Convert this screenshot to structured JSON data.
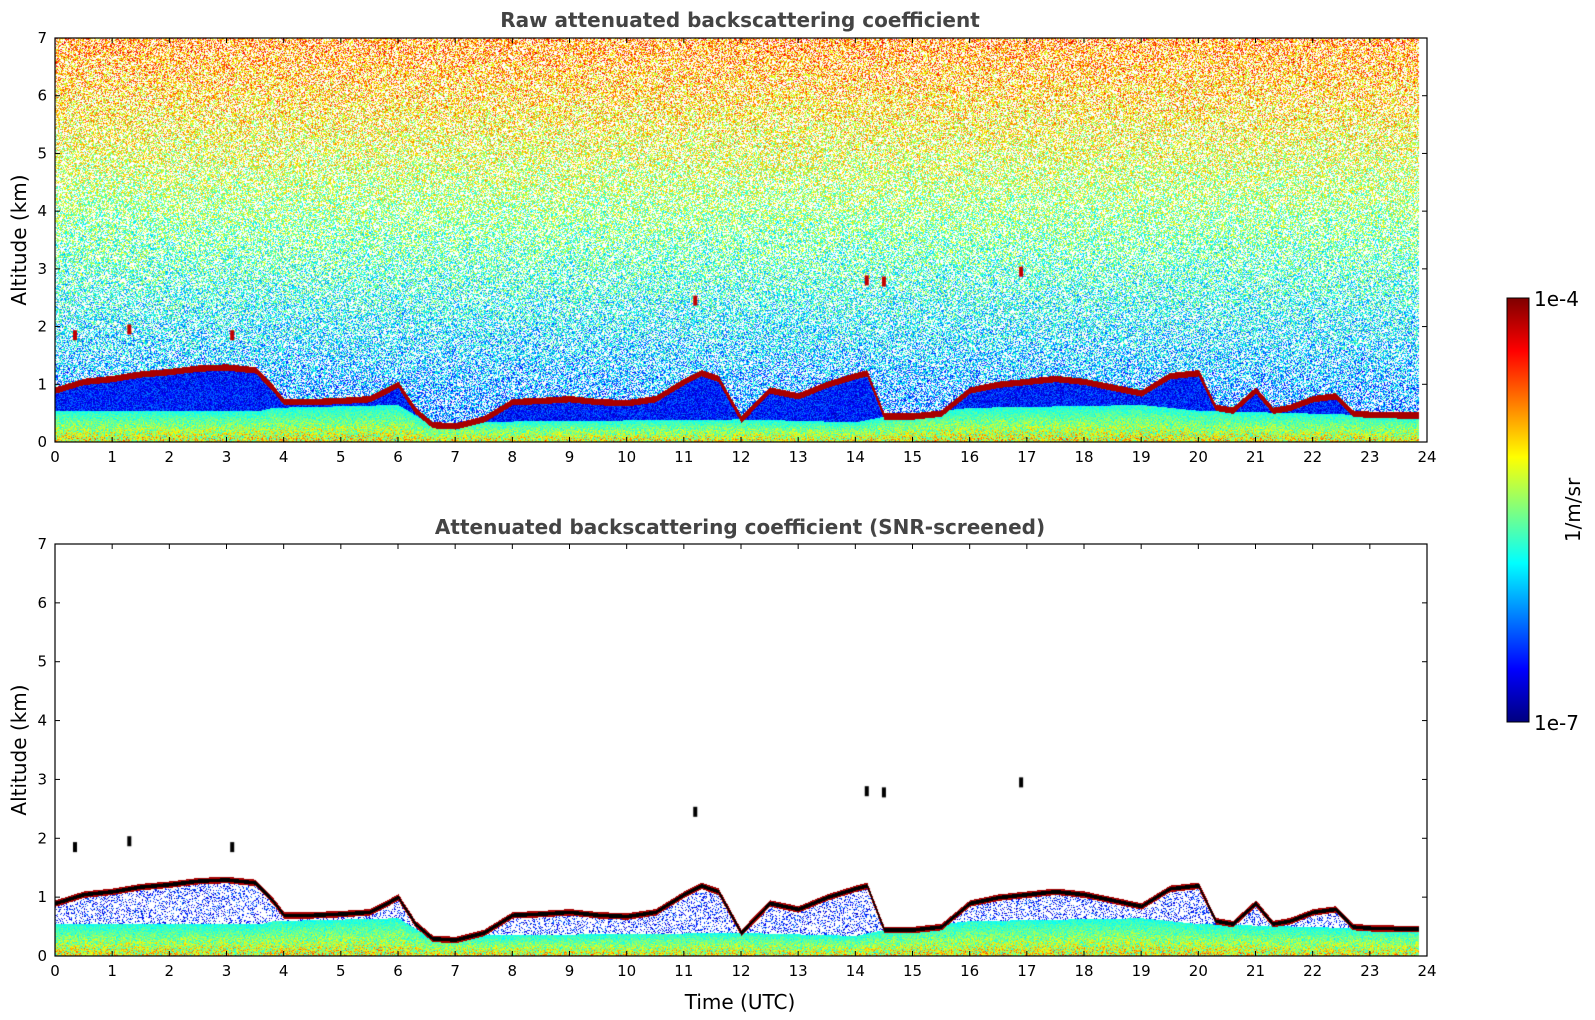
{
  "colors": {
    "jet": [
      "#00007f",
      "#0000ff",
      "#007fff",
      "#00ffff",
      "#7fff7f",
      "#ffff00",
      "#ff7f00",
      "#ff0000",
      "#7f0000"
    ],
    "background": "#ffffff",
    "contour": "#000000"
  },
  "colorbar": {
    "label": "1/m/sr",
    "tick_max": "1e-4",
    "tick_min": "1e-7",
    "range": [
      1e-07,
      0.0001
    ],
    "scale": "log"
  },
  "chart_data": [
    {
      "type": "heatmap",
      "title": "Raw attenuated backscattering coefficient",
      "xlabel": "",
      "ylabel": "Altitude (km)",
      "xlim": [
        0,
        24
      ],
      "ylim": [
        0,
        7
      ],
      "xticks": [
        "0",
        "1",
        "2",
        "3",
        "4",
        "5",
        "6",
        "7",
        "8",
        "9",
        "10",
        "11",
        "12",
        "13",
        "14",
        "15",
        "16",
        "17",
        "18",
        "19",
        "20",
        "21",
        "22",
        "23",
        "24"
      ],
      "yticks": [
        "0",
        "1",
        "2",
        "3",
        "4",
        "5",
        "6",
        "7"
      ],
      "data_end_time": 23.85,
      "cloud_base_height_km": {
        "time": [
          0,
          0.5,
          1,
          1.5,
          2,
          2.5,
          3,
          3.5,
          3.8,
          4,
          4.5,
          5,
          5.5,
          6,
          6.3,
          6.6,
          7,
          7.5,
          8,
          8.5,
          9,
          9.5,
          10,
          10.5,
          11,
          11.3,
          11.6,
          12,
          12.5,
          13,
          13.5,
          14,
          14.2,
          14.5,
          15,
          15.5,
          16,
          16.5,
          17,
          17.5,
          18,
          18.5,
          19,
          19.5,
          20,
          20.3,
          20.6,
          21,
          21.3,
          21.6,
          22,
          22.4,
          22.7,
          23,
          23.5,
          23.85
        ],
        "altitude": [
          0.9,
          1.05,
          1.1,
          1.18,
          1.22,
          1.28,
          1.3,
          1.25,
          0.95,
          0.7,
          0.7,
          0.72,
          0.75,
          1.0,
          0.55,
          0.3,
          0.28,
          0.4,
          0.7,
          0.72,
          0.75,
          0.7,
          0.68,
          0.75,
          1.05,
          1.2,
          1.1,
          0.4,
          0.9,
          0.8,
          1.0,
          1.15,
          1.2,
          0.45,
          0.45,
          0.5,
          0.9,
          1.0,
          1.05,
          1.1,
          1.05,
          0.95,
          0.85,
          1.15,
          1.2,
          0.6,
          0.55,
          0.9,
          0.55,
          0.6,
          0.75,
          0.8,
          0.5,
          0.48,
          0.47,
          0.47
        ]
      },
      "aerosol_layer_top_km": {
        "time": [
          0,
          3.6,
          3.8,
          6,
          6.5,
          12,
          14,
          14.5,
          16,
          19,
          20,
          22,
          23.85
        ],
        "altitude": [
          0.55,
          0.55,
          0.6,
          0.65,
          0.35,
          0.4,
          0.35,
          0.45,
          0.6,
          0.65,
          0.55,
          0.5,
          0.45
        ]
      },
      "isolated_returns": [
        {
          "time": 0.35,
          "altitude": 1.85
        },
        {
          "time": 1.3,
          "altitude": 1.95
        },
        {
          "time": 3.1,
          "altitude": 1.85
        },
        {
          "time": 11.2,
          "altitude": 2.45
        },
        {
          "time": 14.2,
          "altitude": 2.8
        },
        {
          "time": 14.5,
          "altitude": 2.78
        },
        {
          "time": 16.9,
          "altitude": 2.95
        }
      ]
    },
    {
      "type": "heatmap",
      "title": "Attenuated backscattering coefficient (SNR-screened)",
      "xlabel": "Time (UTC)",
      "ylabel": "Altitude (km)",
      "xlim": [
        0,
        24
      ],
      "ylim": [
        0,
        7
      ],
      "xticks": [
        "0",
        "1",
        "2",
        "3",
        "4",
        "5",
        "6",
        "7",
        "8",
        "9",
        "10",
        "11",
        "12",
        "13",
        "14",
        "15",
        "16",
        "17",
        "18",
        "19",
        "20",
        "21",
        "22",
        "23",
        "24"
      ],
      "yticks": [
        "0",
        "1",
        "2",
        "3",
        "4",
        "5",
        "6",
        "7"
      ],
      "data_end_time": 23.85
    }
  ]
}
